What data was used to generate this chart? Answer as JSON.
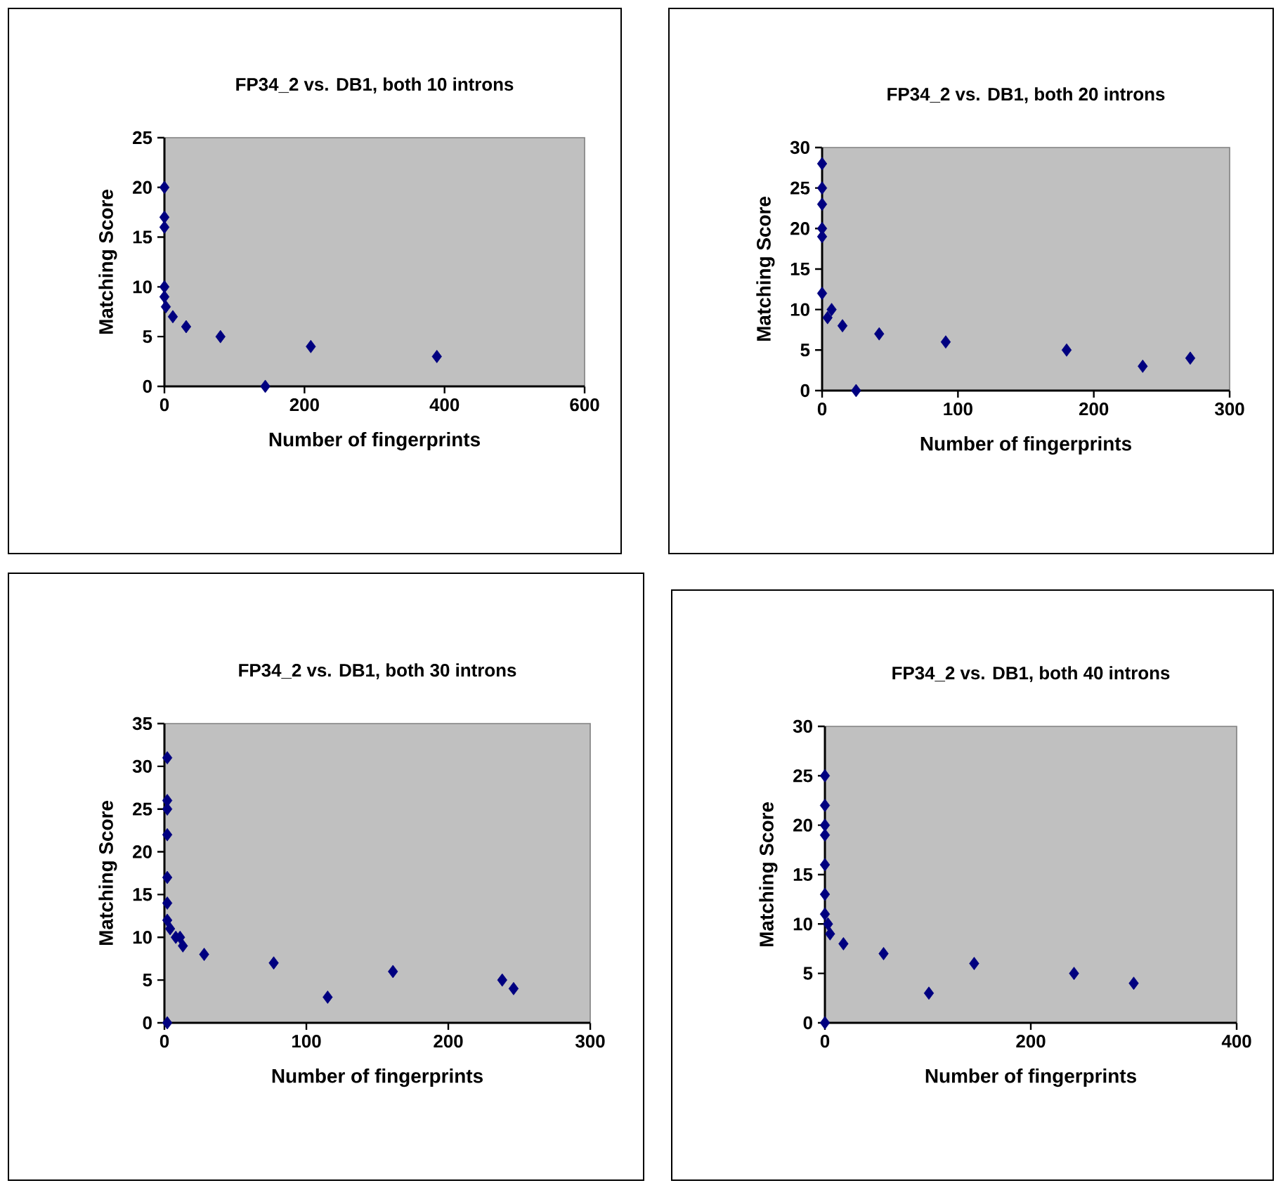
{
  "chart_data": [
    {
      "type": "scatter",
      "title": "FP34_2 vs. DB1, both 10 introns",
      "xlabel": "Number of fingerprints",
      "ylabel": "Matching Score",
      "marker": "diamond",
      "color": "#000080",
      "xlim": [
        0,
        600
      ],
      "ylim": [
        0,
        25
      ],
      "xticks": [
        0,
        200,
        400,
        600
      ],
      "yticks": [
        0,
        5,
        10,
        15,
        20,
        25
      ],
      "x": [
        0,
        0,
        0,
        0,
        0,
        2,
        12,
        31,
        80,
        144,
        209,
        389
      ],
      "values": [
        20,
        17,
        16,
        10,
        9,
        8,
        7,
        6,
        5,
        0,
        4,
        3
      ]
    },
    {
      "type": "scatter",
      "title": "FP34_2 vs. DB1, both 20 introns",
      "xlabel": "Number of fingerprints",
      "ylabel": "Matching Score",
      "marker": "diamond",
      "color": "#000080",
      "xlim": [
        0,
        300
      ],
      "ylim": [
        0,
        30
      ],
      "xticks": [
        0,
        100,
        200,
        300
      ],
      "yticks": [
        0,
        5,
        10,
        15,
        20,
        25,
        30
      ],
      "x": [
        0,
        0,
        0,
        0,
        0,
        0,
        7,
        4,
        15,
        42,
        91,
        180,
        236,
        271,
        25
      ],
      "values": [
        28,
        25,
        23,
        20,
        19,
        12,
        10,
        9,
        8,
        7,
        6,
        5,
        3,
        4,
        0
      ]
    },
    {
      "type": "scatter",
      "title": "FP34_2 vs. DB1, both 30 introns",
      "xlabel": "Number of fingerprints",
      "ylabel": "Matching Score",
      "marker": "diamond",
      "color": "#000080",
      "xlim": [
        0,
        300
      ],
      "ylim": [
        0,
        35
      ],
      "xticks": [
        0,
        100,
        200,
        300
      ],
      "yticks": [
        0,
        5,
        10,
        15,
        20,
        25,
        30,
        35
      ],
      "x": [
        2,
        2,
        2,
        2,
        2,
        2,
        2,
        4,
        8,
        11,
        13,
        28,
        77,
        161,
        238,
        246,
        115,
        2
      ],
      "values": [
        31,
        26,
        25,
        22,
        17,
        14,
        12,
        11,
        10,
        10,
        9,
        8,
        7,
        6,
        5,
        4,
        3,
        0
      ]
    },
    {
      "type": "scatter",
      "title": "FP34_2 vs. DB1, both 40 introns",
      "xlabel": "Number of fingerprints",
      "ylabel": "Matching Score",
      "marker": "diamond",
      "color": "#000080",
      "xlim": [
        0,
        400
      ],
      "ylim": [
        0,
        30
      ],
      "xticks": [
        0,
        200,
        400
      ],
      "yticks": [
        0,
        5,
        10,
        15,
        20,
        25,
        30
      ],
      "x": [
        0,
        0,
        0,
        0,
        0,
        0,
        0,
        3,
        5,
        18,
        57,
        145,
        242,
        300,
        101,
        0
      ],
      "values": [
        25,
        22,
        20,
        19,
        16,
        13,
        11,
        10,
        9,
        8,
        7,
        6,
        5,
        4,
        3,
        0
      ]
    }
  ]
}
